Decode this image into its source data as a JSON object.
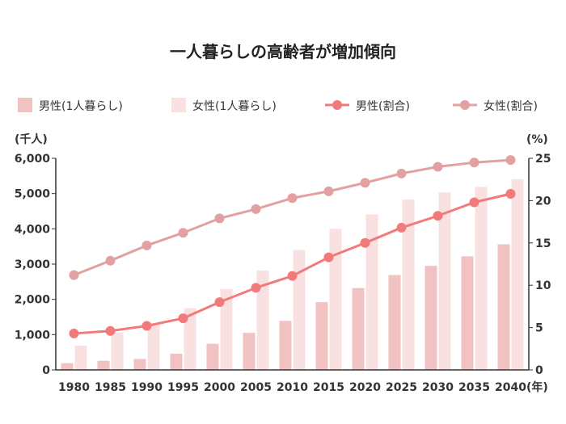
{
  "chart_data": {
    "type": "bar",
    "title": "一人暮らしの高齢者が増加傾向",
    "x": [
      "1980",
      "1985",
      "1990",
      "1995",
      "2000",
      "2005",
      "2010",
      "2015",
      "2020",
      "2025",
      "2030",
      "2035",
      "2040"
    ],
    "x_unit": "(年)",
    "y_left_unit": "(千人)",
    "y_right_unit": "(%)",
    "y_left_ticks": [
      "0",
      "1,000",
      "2,000",
      "3,000",
      "4,000",
      "5,000",
      "6,000"
    ],
    "y_right_ticks": [
      "0",
      "5",
      "10",
      "15",
      "20",
      "25"
    ],
    "ylim_left": [
      0,
      6000
    ],
    "ylim_right": [
      0,
      25
    ],
    "legend_position": "top",
    "series": [
      {
        "name": "男性(1人暮らし)",
        "kind": "bar",
        "axis": "left",
        "color": "#f0c2c2",
        "values": [
          190,
          260,
          310,
          460,
          740,
          1050,
          1390,
          1920,
          2320,
          2690,
          2950,
          3220,
          3560
        ]
      },
      {
        "name": "女性(1人暮らし)",
        "kind": "bar",
        "axis": "left",
        "color": "#f9e1e1",
        "values": [
          690,
          1070,
          1310,
          1750,
          2290,
          2820,
          3400,
          4000,
          4410,
          4830,
          5030,
          5190,
          5410
        ]
      },
      {
        "name": "男性(割合)",
        "kind": "line",
        "axis": "right",
        "color": "#f37a7a",
        "values": [
          4.3,
          4.6,
          5.2,
          6.1,
          8.0,
          9.7,
          11.1,
          13.3,
          15.0,
          16.8,
          18.2,
          19.8,
          20.8
        ]
      },
      {
        "name": "女性(割合)",
        "kind": "line",
        "axis": "right",
        "color": "#e3a0a0",
        "values": [
          11.2,
          12.9,
          14.7,
          16.2,
          17.9,
          19.0,
          20.3,
          21.1,
          22.1,
          23.2,
          24.0,
          24.5,
          24.8
        ]
      }
    ]
  }
}
